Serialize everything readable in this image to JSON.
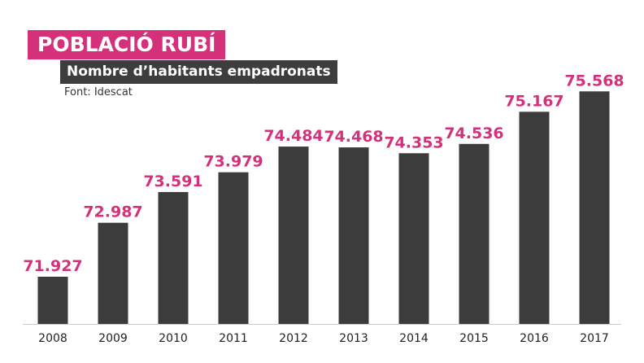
{
  "header": {
    "title": "POBLACIÓ RUBÍ",
    "subtitle": "Nombre d’habitants empadronats",
    "source": "Font: Idescat"
  },
  "colors": {
    "title_bg": "#d5317a",
    "subtitle_bg": "#3d3d3d",
    "bar": "#3c3c3c",
    "value_label": "#d5317a",
    "axis": "#cccccc",
    "tick_label": "#222222"
  },
  "chart_data": {
    "type": "bar",
    "title": "POBLACIÓ RUBÍ",
    "subtitle": "Nombre d’habitants empadronats",
    "xlabel": "",
    "ylabel": "",
    "categories": [
      "2008",
      "2009",
      "2010",
      "2011",
      "2012",
      "2013",
      "2014",
      "2015",
      "2016",
      "2017"
    ],
    "values": [
      71927,
      72987,
      73591,
      73979,
      74484,
      74468,
      74353,
      74536,
      75167,
      75568
    ],
    "value_labels": [
      "71.927",
      "72.987",
      "73.591",
      "73.979",
      "74.484",
      "74.468",
      "74.353",
      "74.536",
      "75.167",
      "75.568"
    ],
    "ylim": [
      71000,
      75700
    ],
    "grid": false,
    "legend": "none"
  }
}
